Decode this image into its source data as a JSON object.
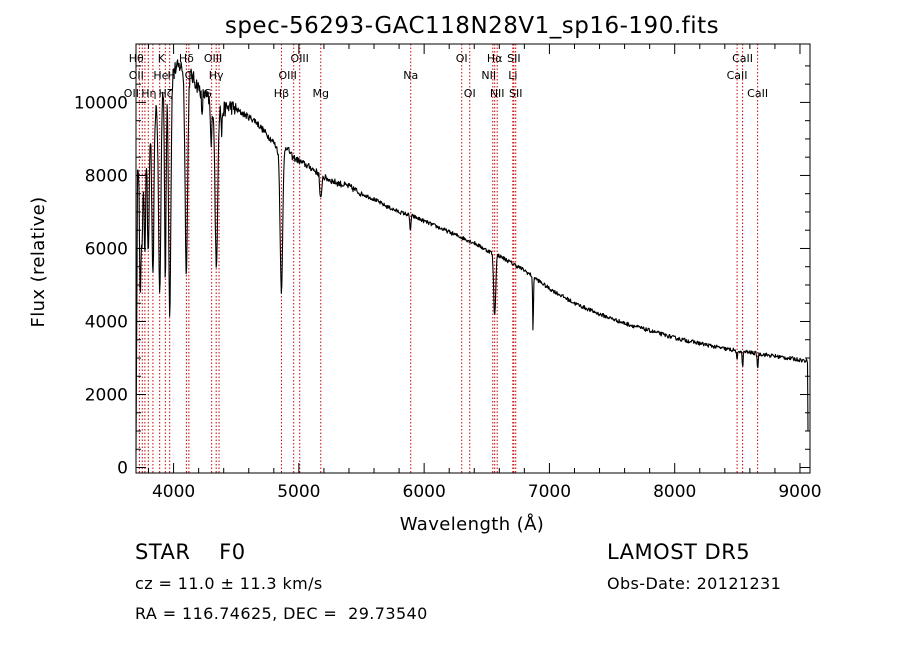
{
  "chart_data": {
    "type": "line",
    "title": "spec-56293-GAC118N28V1_sp16-190.fits",
    "xlabel": "Wavelength (Å)",
    "ylabel": "Flux (relative)",
    "xlim": [
      3700,
      9080
    ],
    "ylim": [
      -150,
      11600
    ],
    "xticks": [
      4000,
      5000,
      6000,
      7000,
      8000,
      9000
    ],
    "yticks": [
      0,
      2000,
      4000,
      6000,
      8000,
      10000
    ],
    "grid": false,
    "series_color": "#000000",
    "line_marker_color": "#cc0000",
    "continuum": [
      [
        3700,
        8200
      ],
      [
        3750,
        8800
      ],
      [
        3800,
        9200
      ],
      [
        3850,
        9800
      ],
      [
        3900,
        10300
      ],
      [
        3950,
        10700
      ],
      [
        4000,
        10900
      ],
      [
        4050,
        11000
      ],
      [
        4100,
        10900
      ],
      [
        4150,
        10700
      ],
      [
        4200,
        10400
      ],
      [
        4250,
        10200
      ],
      [
        4300,
        10000
      ],
      [
        4350,
        9900
      ],
      [
        4400,
        9800
      ],
      [
        4450,
        9900
      ],
      [
        4500,
        9800
      ],
      [
        4550,
        9700
      ],
      [
        4600,
        9600
      ],
      [
        4650,
        9500
      ],
      [
        4700,
        9300
      ],
      [
        4750,
        9100
      ],
      [
        4800,
        8900
      ],
      [
        4850,
        8600
      ],
      [
        4900,
        8800
      ],
      [
        4950,
        8500
      ],
      [
        5000,
        8400
      ],
      [
        5100,
        8200
      ],
      [
        5200,
        7950
      ],
      [
        5300,
        7800
      ],
      [
        5400,
        7700
      ],
      [
        5500,
        7500
      ],
      [
        5600,
        7350
      ],
      [
        5700,
        7150
      ],
      [
        5800,
        7000
      ],
      [
        5900,
        6900
      ],
      [
        6000,
        6750
      ],
      [
        6100,
        6600
      ],
      [
        6200,
        6450
      ],
      [
        6300,
        6300
      ],
      [
        6400,
        6150
      ],
      [
        6500,
        5950
      ],
      [
        6600,
        5800
      ],
      [
        6700,
        5600
      ],
      [
        6800,
        5400
      ],
      [
        6900,
        5150
      ],
      [
        7000,
        4900
      ],
      [
        7200,
        4500
      ],
      [
        7400,
        4200
      ],
      [
        7600,
        3950
      ],
      [
        7800,
        3750
      ],
      [
        8000,
        3550
      ],
      [
        8200,
        3400
      ],
      [
        8400,
        3250
      ],
      [
        8600,
        3150
      ],
      [
        8800,
        3050
      ],
      [
        9000,
        2950
      ],
      [
        9080,
        2900
      ]
    ],
    "absorption_lines": [
      {
        "wl": 3734,
        "depth": 4000,
        "width": 6
      },
      {
        "wl": 3750,
        "depth": 2500,
        "width": 6
      },
      {
        "wl": 3771,
        "depth": 3000,
        "width": 6
      },
      {
        "wl": 3798,
        "depth": 3500,
        "width": 7
      },
      {
        "wl": 3835,
        "depth": 4500,
        "width": 8
      },
      {
        "wl": 3889,
        "depth": 5500,
        "width": 9
      },
      {
        "wl": 3934,
        "depth": 5500,
        "width": 6
      },
      {
        "wl": 3969,
        "depth": 6500,
        "width": 9
      },
      {
        "wl": 4102,
        "depth": 5500,
        "width": 10
      },
      {
        "wl": 4227,
        "depth": 800,
        "width": 4
      },
      {
        "wl": 4300,
        "depth": 1200,
        "width": 6
      },
      {
        "wl": 4341,
        "depth": 4500,
        "width": 10
      },
      {
        "wl": 4384,
        "depth": 700,
        "width": 4
      },
      {
        "wl": 4861,
        "depth": 3800,
        "width": 10
      },
      {
        "wl": 5169,
        "depth": 500,
        "width": 4
      },
      {
        "wl": 5178,
        "depth": 600,
        "width": 5
      },
      {
        "wl": 5890,
        "depth": 400,
        "width": 5
      },
      {
        "wl": 6563,
        "depth": 1700,
        "width": 8
      },
      {
        "wl": 6869,
        "depth": 1600,
        "width": 3
      },
      {
        "wl": 8498,
        "depth": 300,
        "width": 4
      },
      {
        "wl": 8542,
        "depth": 400,
        "width": 4
      },
      {
        "wl": 8662,
        "depth": 400,
        "width": 4
      }
    ],
    "line_markers": [
      {
        "wl": 3727,
        "label": "OII",
        "row": 2,
        "dx": -8
      },
      {
        "wl": 3750,
        "label": "Hθ",
        "row": 0,
        "dx": -6
      },
      {
        "wl": 3771,
        "label": "Hη",
        "row": 2,
        "dx": 4
      },
      {
        "wl": 3798,
        "label": "OII",
        "row": 1,
        "dx": -12
      },
      {
        "wl": 3835,
        "label": "He",
        "row": 1,
        "dx": 8
      },
      {
        "wl": 3889,
        "label": "Hζ",
        "row": 2,
        "dx": 6
      },
      {
        "wl": 3934,
        "label": "K",
        "row": 0,
        "dx": -4
      },
      {
        "wl": 3969,
        "label": "H",
        "row": 1,
        "dx": 2
      },
      {
        "wl": 4102,
        "label": "Hδ",
        "row": 0,
        "dx": 0
      },
      {
        "wl": 4122,
        "label": "G",
        "row": 1,
        "dx": 0
      },
      {
        "wl": 4304,
        "label": "G",
        "row": 2,
        "dx": -4
      },
      {
        "wl": 4340,
        "label": "Hγ",
        "row": 1,
        "dx": 0
      },
      {
        "wl": 4363,
        "label": "OIII",
        "row": 0,
        "dx": -6
      },
      {
        "wl": 4861,
        "label": "Hβ",
        "row": 2,
        "dx": 0
      },
      {
        "wl": 4959,
        "label": "OIII",
        "row": 1,
        "dx": -6
      },
      {
        "wl": 5007,
        "label": "OIII",
        "row": 0,
        "dx": 0
      },
      {
        "wl": 5175,
        "label": "Mg",
        "row": 2,
        "dx": 0
      },
      {
        "wl": 5893,
        "label": "Na",
        "row": 1,
        "dx": 0
      },
      {
        "wl": 6300,
        "label": "OI",
        "row": 0,
        "dx": 0
      },
      {
        "wl": 6364,
        "label": "OI",
        "row": 2,
        "dx": 0
      },
      {
        "wl": 6548,
        "label": "NII",
        "row": 1,
        "dx": -4
      },
      {
        "wl": 6563,
        "label": "Hα",
        "row": 0,
        "dx": 0
      },
      {
        "wl": 6583,
        "label": "NII",
        "row": 2,
        "dx": 0
      },
      {
        "wl": 6708,
        "label": "Li",
        "row": 1,
        "dx": 0
      },
      {
        "wl": 6716,
        "label": "SII",
        "row": 0,
        "dx": 0
      },
      {
        "wl": 6731,
        "label": "SII",
        "row": 2,
        "dx": 0
      },
      {
        "wl": 8498,
        "label": "CaII",
        "row": 1,
        "dx": 0
      },
      {
        "wl": 8542,
        "label": "CaII",
        "row": 0,
        "dx": 0
      },
      {
        "wl": 8662,
        "label": "CaII",
        "row": 2,
        "dx": 0
      }
    ]
  },
  "info": {
    "class_line": "STAR    F0",
    "survey": "LAMOST DR5",
    "redshift": "cz = 11.0 ± 11.3 km/s",
    "obs_date": "Obs-Date: 20121231",
    "coords": "RA = 116.74625, DEC =  29.73540"
  }
}
